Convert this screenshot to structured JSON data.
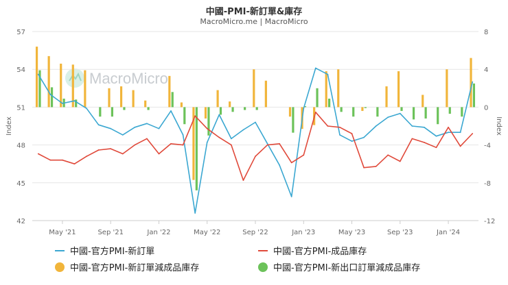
{
  "header": {
    "title": "中國-PMI-新訂單&庫存",
    "subtitle": "MacroMicro.me | MacroMicro",
    "watermark": "MacroMicro"
  },
  "colors": {
    "new_orders": "#3aa7d1",
    "inventory": "#e0493a",
    "spread1": "#f1b53b",
    "spread2": "#6cc25a",
    "grid": "#e6e6e6",
    "axis_text": "#666666"
  },
  "chart_data": {
    "type": "combo-bar-line",
    "title": "中國-PMI-新訂單&庫存",
    "x_ticks": [
      "May '21",
      "Sep '21",
      "Jan '22",
      "May '22",
      "Sep '22",
      "Jan '23",
      "May '23",
      "Sep '23",
      "Jan '24"
    ],
    "x_tick_index": [
      2,
      6,
      10,
      14,
      18,
      22,
      26,
      30,
      34
    ],
    "left_axis": {
      "label": "Index",
      "range": [
        42,
        57
      ],
      "ticks": [
        42,
        45,
        48,
        51,
        54,
        57
      ]
    },
    "right_axis": {
      "label": "Index",
      "range": [
        -12,
        8
      ],
      "ticks": [
        -12,
        -8,
        -4,
        0,
        4,
        8
      ]
    },
    "months": [
      "2021-03",
      "2021-04",
      "2021-05",
      "2021-06",
      "2021-07",
      "2021-08",
      "2021-09",
      "2021-10",
      "2021-11",
      "2021-12",
      "2022-01",
      "2022-02",
      "2022-03",
      "2022-04",
      "2022-05",
      "2022-06",
      "2022-07",
      "2022-08",
      "2022-09",
      "2022-10",
      "2022-11",
      "2022-12",
      "2023-01",
      "2023-02",
      "2023-03",
      "2023-04",
      "2023-05",
      "2023-06",
      "2023-07",
      "2023-08",
      "2023-09",
      "2023-10",
      "2023-11",
      "2023-12",
      "2024-01",
      "2024-02",
      "2024-03"
    ],
    "series": [
      {
        "name": "中國-官方PMI-新訂單",
        "type": "line",
        "axis": "left",
        "values": [
          53.6,
          52.0,
          51.3,
          51.5,
          50.9,
          49.6,
          49.3,
          48.8,
          49.4,
          49.7,
          49.3,
          50.7,
          48.8,
          42.6,
          48.2,
          50.4,
          48.5,
          49.2,
          49.8,
          48.1,
          46.4,
          43.9,
          50.9,
          54.1,
          53.6,
          48.8,
          48.3,
          48.6,
          49.5,
          50.2,
          50.5,
          49.5,
          49.4,
          48.7,
          49.0,
          49.0,
          53.0
        ]
      },
      {
        "name": "中國-官方PMI-成品庫存",
        "type": "line",
        "axis": "left",
        "values": [
          47.3,
          46.8,
          46.8,
          46.5,
          47.1,
          47.6,
          47.7,
          47.3,
          48.0,
          48.5,
          47.3,
          48.1,
          48.0,
          50.3,
          49.3,
          48.6,
          48.0,
          45.2,
          47.1,
          48.0,
          48.1,
          46.6,
          47.2,
          50.6,
          49.5,
          49.4,
          48.9,
          46.2,
          46.3,
          47.2,
          46.7,
          48.5,
          48.2,
          47.8,
          49.4,
          47.9,
          48.9
        ]
      },
      {
        "name": "中國-官方PMI-新訂單減成品庫存",
        "type": "bar",
        "axis": "right",
        "values": [
          6.4,
          5.4,
          4.6,
          4.5,
          3.9,
          0,
          2.0,
          2.2,
          1.8,
          0.7,
          0,
          3.3,
          0.5,
          -7.7,
          -1.2,
          1.8,
          0.6,
          0,
          4.0,
          2.8,
          0,
          -1.0,
          -2.3,
          -1.9,
          3.8,
          4.0,
          0,
          -0.4,
          0,
          2.2,
          3.8,
          0,
          1.3,
          0,
          4.0,
          0,
          5.2
        ]
      },
      {
        "name": "中國-官方PMI-新出口訂單減成品庫存",
        "type": "bar",
        "axis": "right",
        "values": [
          3.9,
          2.1,
          0.9,
          0.8,
          0,
          -1.0,
          -1.0,
          -0.3,
          0,
          -0.3,
          0,
          1.6,
          -1.8,
          -8.8,
          -3.0,
          -0.8,
          -0.5,
          -0.3,
          -0.3,
          0,
          0,
          -2.7,
          0.1,
          2.0,
          0.9,
          -0.5,
          -1.0,
          -0.1,
          -1.0,
          0,
          -0.4,
          -1.3,
          -1.2,
          -1.8,
          -0.7,
          -1.0,
          2.5
        ]
      }
    ],
    "legend_position": "bottom",
    "grid": true
  },
  "legend": [
    {
      "label": "中國-官方PMI-新訂單",
      "kind": "line"
    },
    {
      "label": "中國-官方PMI-成品庫存",
      "kind": "line"
    },
    {
      "label": "中國-官方PMI-新訂單減成品庫存",
      "kind": "dot"
    },
    {
      "label": "中國-官方PMI-新出口訂單減成品庫存",
      "kind": "dot"
    }
  ]
}
